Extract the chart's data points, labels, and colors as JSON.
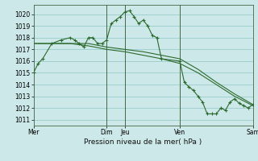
{
  "background_color": "#cce8e8",
  "grid_color": "#99cccc",
  "line_color": "#2d6a2d",
  "title": "Pression niveau de la mer( hPa )",
  "ylim": [
    1010.5,
    1020.8
  ],
  "yticks": [
    1011,
    1012,
    1013,
    1014,
    1015,
    1016,
    1017,
    1018,
    1019,
    1020
  ],
  "xlim": [
    0,
    288
  ],
  "day_positions": [
    0,
    96,
    120,
    192,
    288
  ],
  "day_labels": [
    "Mer",
    "Dim",
    "Jeu",
    "Ven",
    "Sam"
  ],
  "vline_positions": [
    96,
    120,
    192,
    288
  ],
  "series1_x": [
    0,
    6,
    12,
    24,
    36,
    48,
    54,
    60,
    66,
    72,
    78,
    84,
    90,
    96,
    102,
    108,
    114,
    120,
    126,
    132,
    138,
    144,
    150,
    156,
    162,
    168,
    192,
    198,
    204,
    210,
    216,
    222,
    228,
    234,
    240,
    246,
    252,
    258,
    264,
    270,
    276,
    282,
    288
  ],
  "series1_y": [
    1015.0,
    1015.8,
    1016.2,
    1017.5,
    1017.8,
    1018.0,
    1017.8,
    1017.5,
    1017.2,
    1018.0,
    1018.0,
    1017.5,
    1017.5,
    1017.8,
    1019.2,
    1019.5,
    1019.8,
    1020.2,
    1020.3,
    1019.8,
    1019.2,
    1019.5,
    1019.0,
    1018.2,
    1018.0,
    1016.2,
    1016.0,
    1014.2,
    1013.8,
    1013.5,
    1013.0,
    1012.5,
    1011.5,
    1011.5,
    1011.5,
    1012.0,
    1011.8,
    1012.5,
    1012.8,
    1012.4,
    1012.2,
    1012.0,
    1012.3
  ],
  "series2_x": [
    0,
    24,
    48,
    72,
    96,
    120,
    144,
    168,
    192,
    216,
    240,
    264,
    288
  ],
  "series2_y": [
    1017.5,
    1017.5,
    1017.5,
    1017.5,
    1017.2,
    1017.0,
    1016.8,
    1016.5,
    1016.2,
    1015.3,
    1014.2,
    1013.2,
    1012.3
  ],
  "series3_x": [
    0,
    24,
    48,
    72,
    96,
    120,
    144,
    168,
    192,
    216,
    240,
    264,
    288
  ],
  "series3_y": [
    1017.5,
    1017.5,
    1017.5,
    1017.3,
    1017.0,
    1016.8,
    1016.5,
    1016.2,
    1015.8,
    1015.0,
    1014.0,
    1013.0,
    1012.2
  ]
}
